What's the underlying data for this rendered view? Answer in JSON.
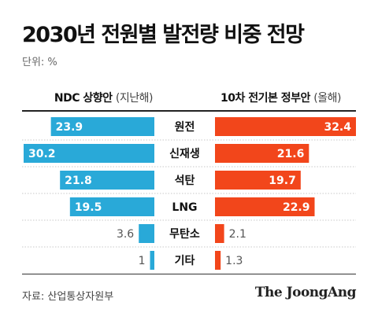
{
  "title": "2030년 전원별 발전량 비중 전망",
  "unit": "단위: %",
  "source": "자료: 산업통상자원부",
  "logo": "The JoongAng",
  "colors": {
    "left_bar": "#29a9d8",
    "right_bar": "#f2461b",
    "text_dark": "#111111",
    "text_light": "#555555"
  },
  "chart_data": {
    "type": "bar",
    "orientation": "horizontal-butterfly",
    "categories": [
      "원전",
      "신재생",
      "석탄",
      "LNG",
      "무탄소",
      "기타"
    ],
    "series": [
      {
        "name": "NDC 상향안",
        "name_suffix": "(지난해)",
        "values": [
          23.9,
          30.2,
          21.8,
          19.5,
          3.6,
          1
        ]
      },
      {
        "name": "10차 전기본 정부안",
        "name_suffix": "(올해)",
        "values": [
          32.4,
          21.6,
          19.7,
          22.9,
          2.1,
          1.3
        ]
      }
    ],
    "value_labels": {
      "left": [
        "23.9",
        "30.2",
        "21.8",
        "19.5",
        "3.6",
        "1"
      ],
      "right": [
        "32.4",
        "21.6",
        "19.7",
        "22.9",
        "2.1",
        "1.3"
      ]
    },
    "xlim": [
      0,
      32.4
    ]
  }
}
